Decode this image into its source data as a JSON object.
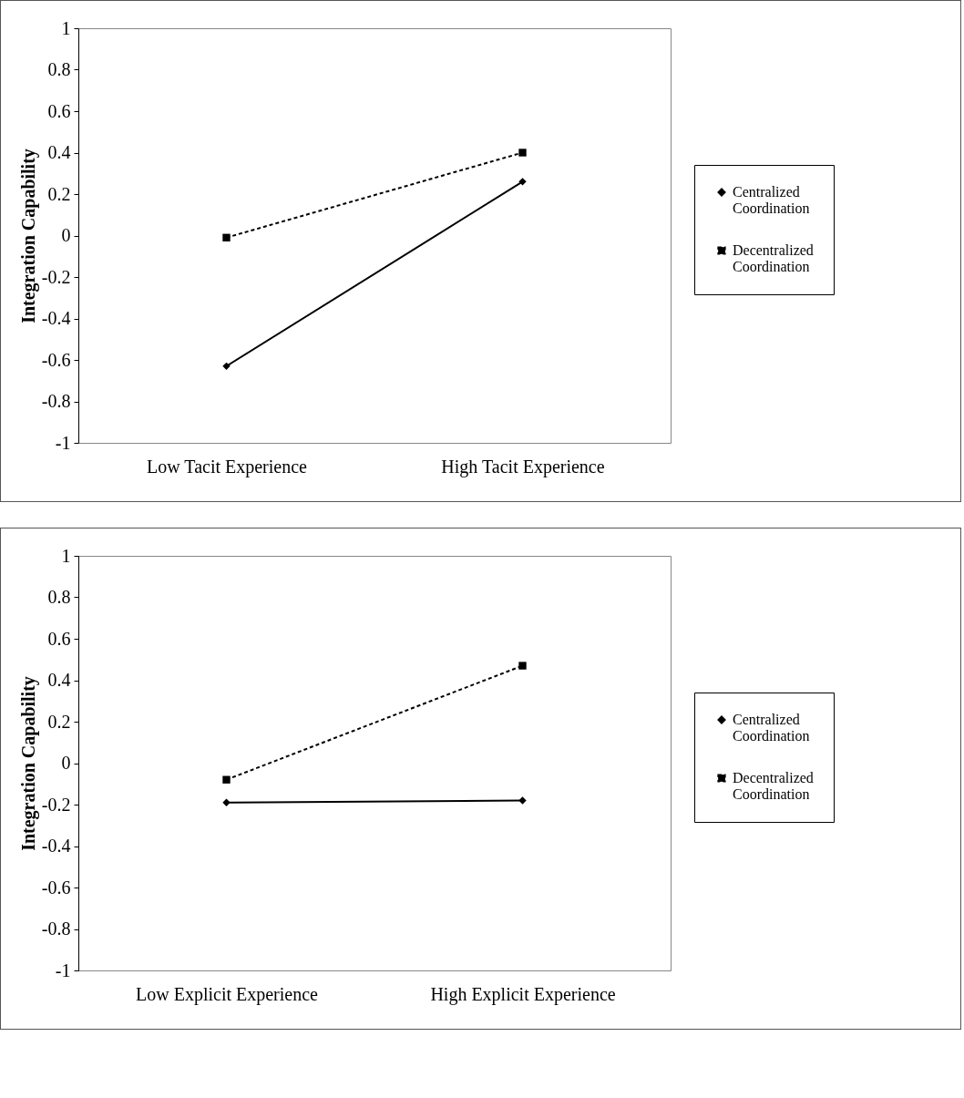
{
  "chart_data": [
    {
      "type": "line",
      "ylabel": "Integration Capability",
      "categories": [
        "Low Tacit Experience",
        "High Tacit Experience"
      ],
      "ylim": [
        -1,
        1
      ],
      "yticks": [
        -1,
        -0.8,
        -0.6,
        -0.4,
        -0.2,
        0,
        0.2,
        0.4,
        0.6,
        0.8,
        1
      ],
      "grid": false,
      "legend": "right",
      "series": [
        {
          "name": "Centralized Coordination",
          "color": "#000000",
          "marker": "diamond",
          "line_style": "solid",
          "values": [
            -0.63,
            0.26
          ]
        },
        {
          "name": "Decentralized Coordination",
          "color": "#000000",
          "marker": "square",
          "line_style": "dashed",
          "values": [
            -0.01,
            0.4
          ]
        }
      ]
    },
    {
      "type": "line",
      "ylabel": "Integration Capability",
      "categories": [
        "Low Explicit Experience",
        "High Explicit Experience"
      ],
      "ylim": [
        -1,
        1
      ],
      "yticks": [
        -1,
        -0.8,
        -0.6,
        -0.4,
        -0.2,
        0,
        0.2,
        0.4,
        0.6,
        0.8,
        1
      ],
      "grid": false,
      "legend": "right",
      "series": [
        {
          "name": "Centralized Coordination",
          "color": "#000000",
          "marker": "diamond",
          "line_style": "solid",
          "values": [
            -0.19,
            -0.18
          ]
        },
        {
          "name": "Decentralized Coordination",
          "color": "#000000",
          "marker": "square",
          "line_style": "dashed",
          "values": [
            -0.08,
            0.47
          ]
        }
      ]
    }
  ]
}
